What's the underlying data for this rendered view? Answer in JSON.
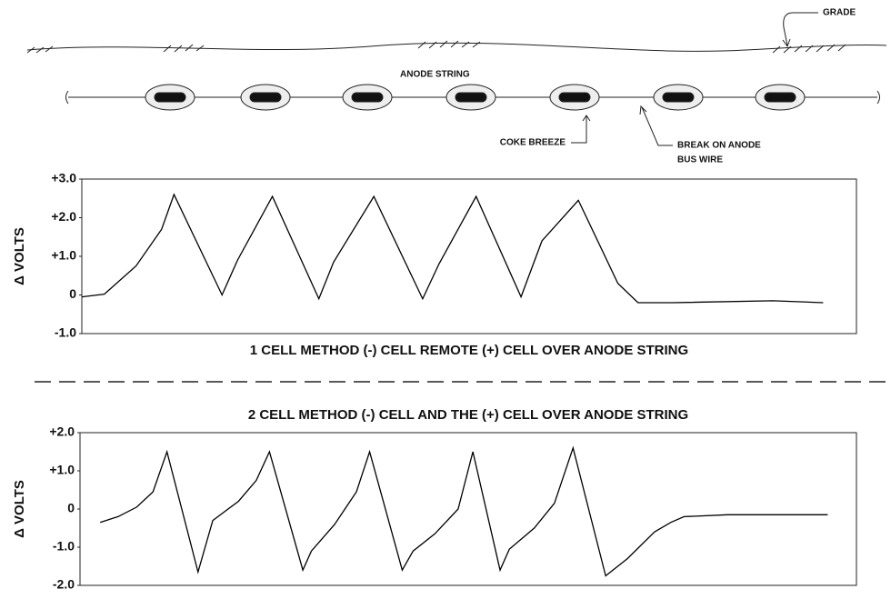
{
  "diagram": {
    "labels": {
      "grade": "GRADE",
      "anode_string": "ANODE STRING",
      "coke_breeze": "COKE BREEZE",
      "break": [
        "BREAK ON ANODE",
        "BUS WIRE"
      ]
    }
  },
  "chart_data": [
    {
      "type": "line",
      "title": "1 CELL METHOD (-) CELL REMOTE (+) CELL OVER ANODE STRING",
      "ylabel": "Δ VOLTS",
      "color": "#000000",
      "xlim": [
        0,
        100
      ],
      "ylim": [
        -1.0,
        3.0
      ],
      "yticks": [
        {
          "value": 3.0,
          "label": "+3.0"
        },
        {
          "value": 2.0,
          "label": "+2.0"
        },
        {
          "value": 1.0,
          "label": "+1.0"
        },
        0,
        {
          "value": -1.0,
          "label": "-1.0"
        }
      ],
      "x": [
        0,
        2.9,
        7.0,
        10.3,
        11.9,
        18.1,
        20.1,
        24.6,
        30.6,
        32.5,
        37.7,
        44.0,
        46.1,
        50.9,
        56.7,
        59.4,
        64.1,
        69.2,
        71.8,
        76.3,
        89.2,
        95.7
      ],
      "values": [
        -0.05,
        0.02,
        0.75,
        1.7,
        2.6,
        0,
        0.9,
        2.55,
        -0.1,
        0.85,
        2.55,
        -0.1,
        0.8,
        2.55,
        -0.05,
        1.4,
        2.45,
        0.3,
        -0.2,
        -0.2,
        -0.15,
        -0.2
      ]
    },
    {
      "type": "line",
      "title": "2 CELL METHOD (-) CELL AND THE (+) CELL OVER ANODE STRING",
      "ylabel": "Δ VOLTS",
      "color": "#000000",
      "xlim": [
        0,
        100
      ],
      "ylim": [
        -2.0,
        2.0
      ],
      "yticks": [
        {
          "value": 2.0,
          "label": "+2.0"
        },
        {
          "value": 1.0,
          "label": "+1.0"
        },
        0,
        {
          "value": -1.0,
          "label": "-1.0"
        },
        {
          "value": -2.0,
          "label": "-2.0"
        }
      ],
      "x": [
        2.6,
        4.9,
        7.3,
        9.4,
        11.2,
        15.2,
        17.1,
        20.4,
        22.7,
        24.4,
        28.7,
        29.8,
        32.8,
        35.6,
        37.3,
        41.5,
        42.9,
        45.7,
        48.7,
        50.6,
        54.1,
        55.3,
        58.5,
        61.1,
        63.5,
        67.7,
        70.5,
        74.0,
        76.1,
        77.8,
        83.4,
        96.3
      ],
      "values": [
        -0.35,
        -0.2,
        0.05,
        0.45,
        1.5,
        -1.65,
        -0.3,
        0.2,
        0.75,
        1.5,
        -1.6,
        -1.1,
        -0.4,
        0.45,
        1.5,
        -1.6,
        -1.1,
        -0.65,
        0,
        1.5,
        -1.6,
        -1.05,
        -0.5,
        0.15,
        1.6,
        -1.75,
        -1.3,
        -0.6,
        -0.35,
        -0.2,
        -0.15,
        -0.15
      ]
    }
  ]
}
